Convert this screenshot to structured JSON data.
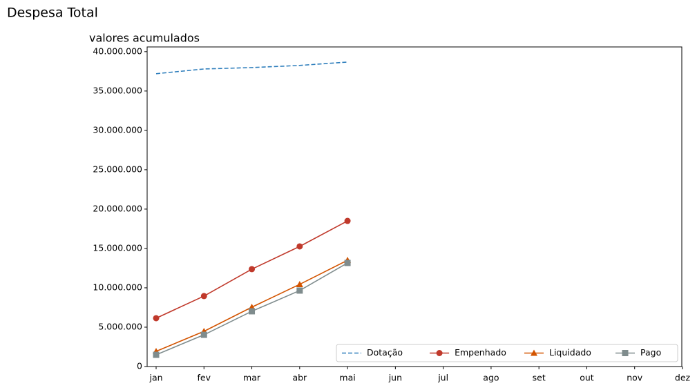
{
  "chart_data": {
    "type": "line",
    "title": "Despesa Total",
    "subtitle": "valores acumulados",
    "categories": [
      "jan",
      "fev",
      "mar",
      "abr",
      "mai",
      "jun",
      "jul",
      "ago",
      "set",
      "out",
      "nov",
      "dez"
    ],
    "series": [
      {
        "name": "Dotação",
        "color": "#2e7ebc",
        "linestyle": "dashed",
        "marker": null,
        "values": [
          37200000,
          37800000,
          37980000,
          38250000,
          38680000,
          null,
          null,
          null,
          null,
          null,
          null,
          null
        ]
      },
      {
        "name": "Empenhado",
        "color": "#c0392b",
        "linestyle": "solid",
        "marker": "circle",
        "values": [
          6140000,
          8950000,
          12370000,
          15260000,
          18500000,
          null,
          null,
          null,
          null,
          null,
          null,
          null
        ]
      },
      {
        "name": "Liquidado",
        "color": "#d35400",
        "linestyle": "solid",
        "marker": "triangle",
        "values": [
          1930000,
          4470000,
          7540000,
          10440000,
          13500000,
          null,
          null,
          null,
          null,
          null,
          null,
          null
        ]
      },
      {
        "name": "Pago",
        "color": "#7f8c8d",
        "linestyle": "solid",
        "marker": "square",
        "values": [
          1490000,
          4030000,
          7020000,
          9650000,
          13160000,
          null,
          null,
          null,
          null,
          null,
          null,
          null
        ]
      }
    ],
    "ylim": [
      0,
      40600000
    ],
    "yticks": [
      0,
      {
        "value": 5000000,
        "label": "5.000.000"
      },
      {
        "value": 10000000,
        "label": "10.000.000"
      },
      {
        "value": 15000000,
        "label": "15.000.000"
      },
      {
        "value": 20000000,
        "label": "20.000.000"
      },
      {
        "value": 25000000,
        "label": "25.000.000"
      },
      {
        "value": 30000000,
        "label": "30.000.000"
      },
      {
        "value": 35000000,
        "label": "35.000.000"
      },
      {
        "value": 40000000,
        "label": "40.000.000"
      }
    ],
    "legend": "lower right"
  }
}
